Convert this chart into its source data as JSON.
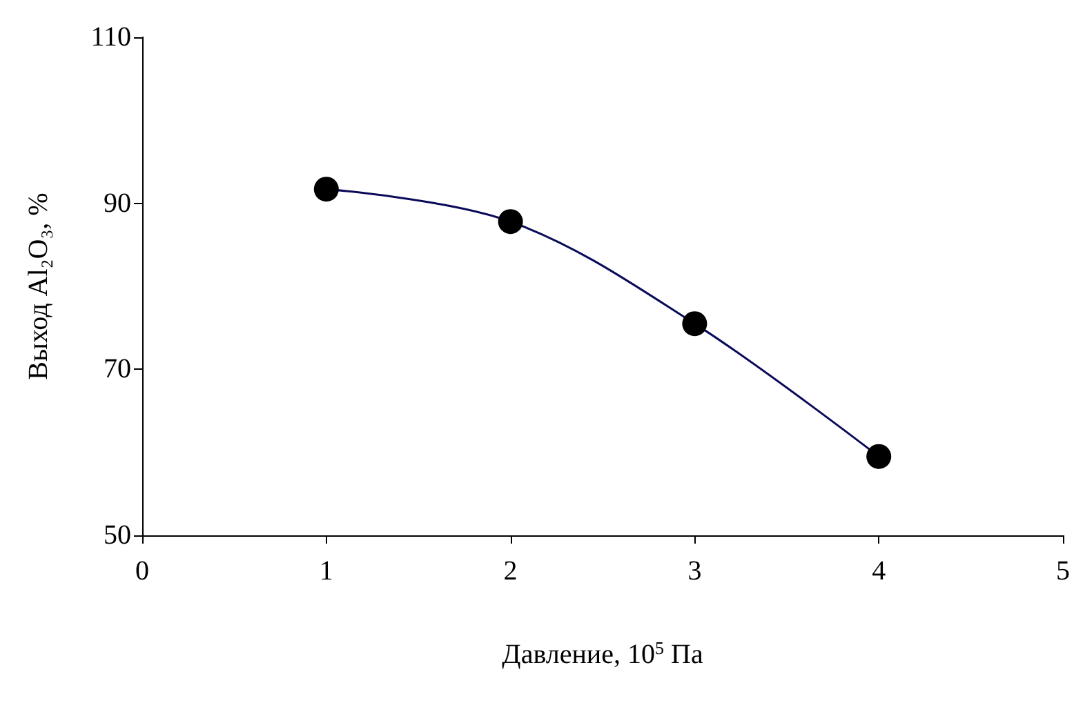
{
  "chart_data": {
    "type": "line",
    "xlabel": "Давление, 10$^{5}$ Па",
    "ylabel": "Выход Al₂O₃, %",
    "x": [
      1,
      2,
      3,
      4
    ],
    "series": [
      {
        "color": "#0a0a5a",
        "values": [
          91.7,
          87.8,
          75.5,
          59.5
        ]
      }
    ],
    "xlim": [
      0,
      5
    ],
    "xticks": [
      0,
      1,
      2,
      3,
      4,
      5
    ],
    "ylim": [
      50,
      110
    ],
    "yticks": [
      50,
      70,
      90,
      110
    ],
    "marker": "circle",
    "line_style": "solid"
  }
}
